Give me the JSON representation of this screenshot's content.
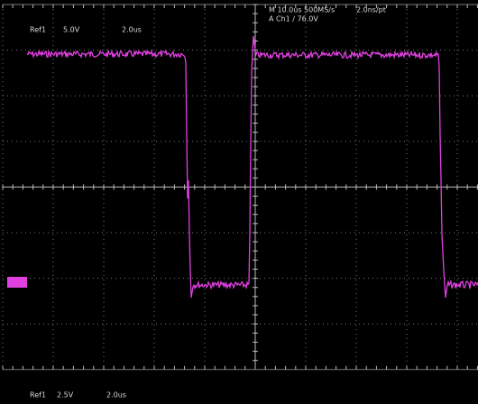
{
  "screen": {
    "top_left": {
      "ref": "Ref1",
      "volts": "5.0V",
      "time": "2.0us"
    },
    "top_right": {
      "timebase": "M 10.0us 500MS/s",
      "resolution": "2.0ns/pt",
      "trigger": "A Ch1 ∕ 76.0V"
    },
    "bottom": {
      "ref": "Ref1",
      "volts": "2.5V",
      "time": "2.0us"
    }
  }
}
